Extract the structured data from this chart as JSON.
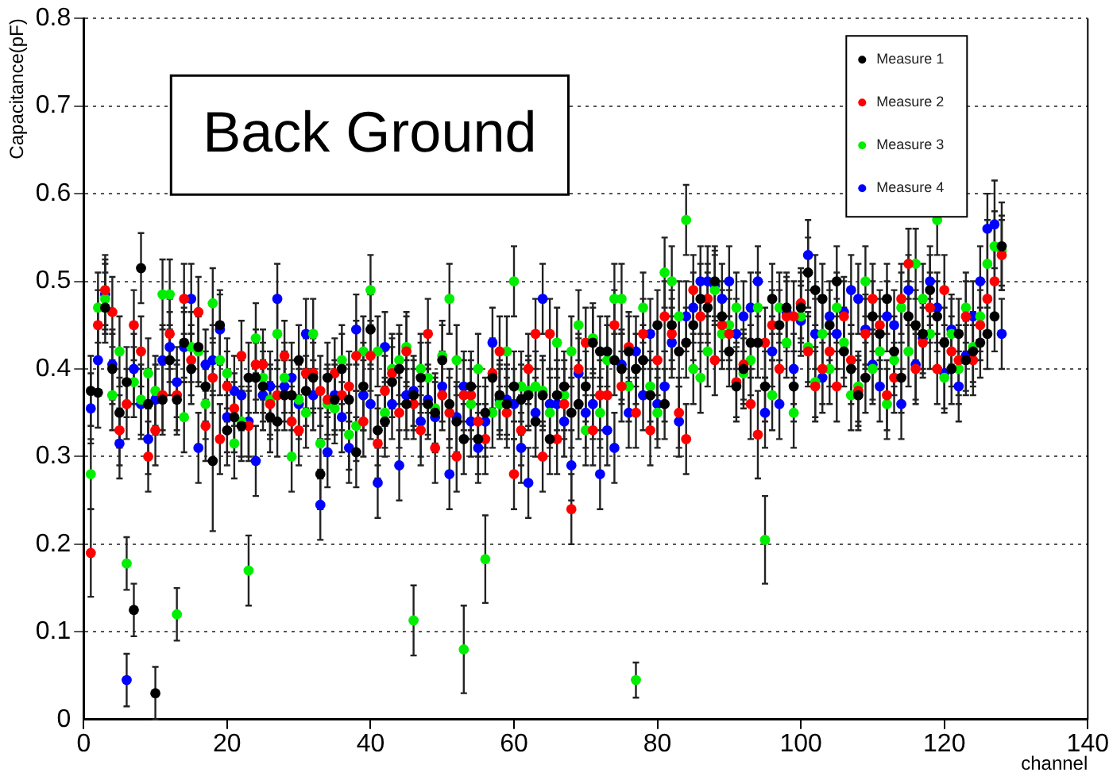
{
  "chart_data": {
    "type": "scatter",
    "xlabel": "channel",
    "ylabel": "Capacitance(pF)",
    "annotations": [
      "Back Ground"
    ],
    "xlim": [
      0,
      140
    ],
    "xticks": [
      0,
      20,
      40,
      60,
      80,
      100,
      120,
      140
    ],
    "ylim": [
      0,
      0.8
    ],
    "yticks": [
      0,
      0.1,
      0.2,
      0.3,
      0.4,
      0.5,
      0.6,
      0.7,
      0.8
    ],
    "grid": "y",
    "legend": "top right",
    "marker": "circle",
    "x": [
      1,
      2,
      3,
      4,
      5,
      6,
      7,
      8,
      9,
      10,
      11,
      12,
      13,
      14,
      15,
      16,
      17,
      18,
      19,
      20,
      21,
      22,
      23,
      24,
      25,
      26,
      27,
      28,
      29,
      30,
      31,
      32,
      33,
      34,
      35,
      36,
      37,
      38,
      39,
      40,
      41,
      42,
      43,
      44,
      45,
      46,
      47,
      48,
      49,
      50,
      51,
      52,
      53,
      54,
      55,
      56,
      57,
      58,
      59,
      60,
      61,
      62,
      63,
      64,
      65,
      66,
      67,
      68,
      69,
      70,
      71,
      72,
      73,
      74,
      75,
      76,
      77,
      78,
      79,
      80,
      81,
      82,
      83,
      84,
      85,
      86,
      87,
      88,
      89,
      90,
      91,
      92,
      93,
      94,
      95,
      96,
      97,
      98,
      99,
      100,
      101,
      102,
      103,
      104,
      105,
      106,
      107,
      108,
      109,
      110,
      111,
      112,
      113,
      114,
      115,
      116,
      117,
      118,
      119,
      120,
      121,
      122,
      123,
      124,
      125,
      126,
      127,
      128
    ],
    "series": [
      {
        "name": "Measure 1",
        "color": "#000000",
        "values": [
          0.375,
          0.373,
          0.47,
          0.4,
          0.35,
          0.385,
          0.125,
          0.515,
          0.36,
          0.03,
          0.365,
          0.41,
          0.365,
          0.43,
          0.4,
          0.425,
          0.38,
          0.295,
          0.45,
          0.33,
          0.345,
          0.335,
          0.39,
          0.39,
          0.38,
          0.345,
          0.34,
          0.37,
          0.37,
          0.41,
          0.375,
          0.39,
          0.28,
          0.39,
          0.365,
          0.4,
          0.365,
          0.305,
          0.38,
          0.445,
          0.33,
          0.34,
          0.385,
          0.4,
          0.36,
          0.37,
          0.39,
          0.36,
          0.35,
          0.41,
          0.36,
          0.34,
          0.32,
          0.38,
          0.32,
          0.35,
          0.39,
          0.37,
          0.36,
          0.38,
          0.365,
          0.37,
          0.34,
          0.37,
          0.32,
          0.37,
          0.38,
          0.35,
          0.36,
          0.38,
          0.43,
          0.42,
          0.42,
          0.41,
          0.4,
          0.42,
          0.4,
          0.41,
          0.37,
          0.45,
          0.36,
          0.45,
          0.42,
          0.43,
          0.45,
          0.48,
          0.47,
          0.5,
          0.46,
          0.42,
          0.38,
          0.4,
          0.43,
          0.43,
          0.38,
          0.48,
          0.45,
          0.47,
          0.38,
          0.47,
          0.51,
          0.49,
          0.48,
          0.45,
          0.5,
          0.42,
          0.4,
          0.37,
          0.39,
          0.46,
          0.44,
          0.48,
          0.42,
          0.39,
          0.46,
          0.45,
          0.44,
          0.49,
          0.46,
          0.43,
          0.4,
          0.44,
          0.41,
          0.42,
          0.43,
          0.44,
          0.46,
          0.54
        ],
        "errors": [
          0.04,
          0.04,
          0.04,
          0.04,
          0.04,
          0.04,
          0.03,
          0.04,
          0.04,
          0.03,
          0.04,
          0.04,
          0.04,
          0.04,
          0.04,
          0.04,
          0.04,
          0.08,
          0.04,
          0.04,
          0.04,
          0.04,
          0.04,
          0.04,
          0.04,
          0.04,
          0.04,
          0.04,
          0.04,
          0.04,
          0.04,
          0.04,
          0.04,
          0.04,
          0.04,
          0.04,
          0.04,
          0.04,
          0.05,
          0.04,
          0.04,
          0.04,
          0.04,
          0.04,
          0.04,
          0.04,
          0.04,
          0.04,
          0.04,
          0.04,
          0.04,
          0.04,
          0.04,
          0.04,
          0.04,
          0.04,
          0.04,
          0.04,
          0.04,
          0.04,
          0.04,
          0.04,
          0.04,
          0.04,
          0.04,
          0.04,
          0.04,
          0.04,
          0.04,
          0.04,
          0.04,
          0.04,
          0.04,
          0.04,
          0.04,
          0.04,
          0.04,
          0.04,
          0.04,
          0.04,
          0.04,
          0.04,
          0.04,
          0.04,
          0.04,
          0.04,
          0.04,
          0.04,
          0.04,
          0.04,
          0.04,
          0.04,
          0.04,
          0.04,
          0.04,
          0.04,
          0.04,
          0.04,
          0.04,
          0.04,
          0.04,
          0.04,
          0.04,
          0.04,
          0.04,
          0.04,
          0.04,
          0.04,
          0.04,
          0.04,
          0.04,
          0.04,
          0.04,
          0.04,
          0.04,
          0.04,
          0.04,
          0.04,
          0.04,
          0.04,
          0.04,
          0.04,
          0.04,
          0.04,
          0.04,
          0.04,
          0.04,
          0.05
        ]
      },
      {
        "name": "Measure 2",
        "color": "#ff0000",
        "values": [
          0.19,
          0.45,
          0.49,
          0.465,
          0.33,
          0.36,
          0.45,
          0.42,
          0.3,
          0.33,
          0.37,
          0.44,
          0.37,
          0.48,
          0.41,
          0.465,
          0.335,
          0.39,
          0.32,
          0.38,
          0.355,
          0.415,
          0.335,
          0.405,
          0.405,
          0.36,
          0.37,
          0.415,
          0.34,
          0.33,
          0.395,
          0.395,
          0.375,
          0.365,
          0.395,
          0.37,
          0.38,
          0.415,
          0.34,
          0.415,
          0.315,
          0.375,
          0.395,
          0.35,
          0.42,
          0.36,
          0.33,
          0.44,
          0.31,
          0.37,
          0.35,
          0.3,
          0.37,
          0.37,
          0.34,
          0.32,
          0.395,
          0.42,
          0.35,
          0.28,
          0.33,
          0.4,
          0.44,
          0.3,
          0.44,
          0.32,
          0.36,
          0.24,
          0.4,
          0.43,
          0.33,
          0.37,
          0.37,
          0.45,
          0.38,
          0.425,
          0.35,
          0.44,
          0.33,
          0.41,
          0.46,
          0.44,
          0.35,
          0.32,
          0.49,
          0.46,
          0.48,
          0.41,
          0.45,
          0.44,
          0.385,
          0.405,
          0.36,
          0.325,
          0.43,
          0.45,
          0.4,
          0.46,
          0.46,
          0.475,
          0.42,
          0.38,
          0.4,
          0.42,
          0.38,
          0.46,
          0.41,
          0.375,
          0.44,
          0.48,
          0.45,
          0.37,
          0.39,
          0.48,
          0.52,
          0.4,
          0.43,
          0.47,
          0.4,
          0.49,
          0.42,
          0.41,
          0.46,
          0.41,
          0.45,
          0.48,
          0.5,
          0.53
        ],
        "errors": [
          0.05,
          0.04,
          0.04,
          0.04,
          0.04,
          0.04,
          0.04,
          0.04,
          0.04,
          0.04,
          0.04,
          0.04,
          0.04,
          0.04,
          0.04,
          0.04,
          0.04,
          0.04,
          0.04,
          0.04,
          0.04,
          0.04,
          0.04,
          0.04,
          0.04,
          0.04,
          0.04,
          0.04,
          0.04,
          0.04,
          0.04,
          0.04,
          0.04,
          0.04,
          0.04,
          0.04,
          0.04,
          0.04,
          0.04,
          0.04,
          0.04,
          0.04,
          0.04,
          0.04,
          0.04,
          0.04,
          0.04,
          0.04,
          0.04,
          0.04,
          0.04,
          0.04,
          0.04,
          0.04,
          0.04,
          0.04,
          0.04,
          0.04,
          0.04,
          0.04,
          0.04,
          0.04,
          0.04,
          0.04,
          0.04,
          0.04,
          0.04,
          0.04,
          0.04,
          0.04,
          0.04,
          0.04,
          0.04,
          0.04,
          0.04,
          0.04,
          0.04,
          0.04,
          0.04,
          0.04,
          0.04,
          0.04,
          0.04,
          0.04,
          0.04,
          0.04,
          0.04,
          0.04,
          0.04,
          0.04,
          0.04,
          0.04,
          0.04,
          0.05,
          0.04,
          0.04,
          0.04,
          0.04,
          0.04,
          0.04,
          0.04,
          0.04,
          0.04,
          0.04,
          0.04,
          0.04,
          0.04,
          0.04,
          0.04,
          0.04,
          0.04,
          0.04,
          0.04,
          0.04,
          0.04,
          0.04,
          0.04,
          0.04,
          0.04,
          0.04,
          0.04,
          0.04,
          0.04,
          0.04,
          0.04,
          0.04,
          0.04,
          0.04
        ]
      },
      {
        "name": "Measure 3",
        "color": "#00ee00",
        "values": [
          0.28,
          0.47,
          0.48,
          0.37,
          0.42,
          0.178,
          0.385,
          0.365,
          0.395,
          0.375,
          0.485,
          0.485,
          0.12,
          0.345,
          0.425,
          0.42,
          0.36,
          0.475,
          0.41,
          0.395,
          0.315,
          0.34,
          0.17,
          0.435,
          0.39,
          0.365,
          0.44,
          0.39,
          0.3,
          0.365,
          0.35,
          0.44,
          0.315,
          0.36,
          0.355,
          0.41,
          0.325,
          0.335,
          0.42,
          0.49,
          0.42,
          0.35,
          0.4,
          0.41,
          0.425,
          0.113,
          0.4,
          0.39,
          0.355,
          0.415,
          0.48,
          0.41,
          0.08,
          0.36,
          0.4,
          0.183,
          0.35,
          0.36,
          0.42,
          0.5,
          0.38,
          0.375,
          0.38,
          0.375,
          0.35,
          0.43,
          0.37,
          0.42,
          0.45,
          0.33,
          0.435,
          0.35,
          0.41,
          0.48,
          0.48,
          0.38,
          0.045,
          0.47,
          0.38,
          0.35,
          0.51,
          0.5,
          0.46,
          0.57,
          0.4,
          0.39,
          0.42,
          0.49,
          0.44,
          0.45,
          0.47,
          0.395,
          0.41,
          0.47,
          0.205,
          0.37,
          0.47,
          0.43,
          0.35,
          0.46,
          0.425,
          0.385,
          0.44,
          0.4,
          0.47,
          0.43,
          0.37,
          0.38,
          0.5,
          0.4,
          0.42,
          0.36,
          0.41,
          0.47,
          0.42,
          0.52,
          0.48,
          0.44,
          0.57,
          0.39,
          0.44,
          0.4,
          0.47,
          0.425,
          0.46,
          0.52,
          0.54,
          0.535
        ],
        "errors": [
          0.04,
          0.04,
          0.04,
          0.04,
          0.04,
          0.03,
          0.04,
          0.04,
          0.04,
          0.04,
          0.04,
          0.04,
          0.03,
          0.04,
          0.04,
          0.04,
          0.04,
          0.04,
          0.04,
          0.04,
          0.04,
          0.04,
          0.04,
          0.04,
          0.04,
          0.04,
          0.04,
          0.04,
          0.04,
          0.04,
          0.04,
          0.04,
          0.04,
          0.04,
          0.04,
          0.04,
          0.04,
          0.04,
          0.04,
          0.04,
          0.04,
          0.04,
          0.04,
          0.04,
          0.04,
          0.04,
          0.04,
          0.04,
          0.04,
          0.04,
          0.04,
          0.04,
          0.05,
          0.04,
          0.04,
          0.05,
          0.04,
          0.04,
          0.04,
          0.04,
          0.04,
          0.04,
          0.04,
          0.04,
          0.04,
          0.04,
          0.04,
          0.04,
          0.04,
          0.04,
          0.04,
          0.04,
          0.04,
          0.04,
          0.04,
          0.04,
          0.02,
          0.04,
          0.04,
          0.04,
          0.04,
          0.04,
          0.04,
          0.04,
          0.04,
          0.04,
          0.04,
          0.04,
          0.04,
          0.04,
          0.04,
          0.04,
          0.04,
          0.04,
          0.05,
          0.04,
          0.04,
          0.04,
          0.04,
          0.04,
          0.04,
          0.04,
          0.04,
          0.04,
          0.04,
          0.04,
          0.04,
          0.04,
          0.04,
          0.04,
          0.04,
          0.04,
          0.04,
          0.04,
          0.04,
          0.04,
          0.04,
          0.04,
          0.04,
          0.04,
          0.04,
          0.04,
          0.04,
          0.04,
          0.04,
          0.05,
          0.04,
          0.04
        ]
      },
      {
        "name": "Measure 4",
        "color": "#0000ff",
        "values": [
          0.355,
          0.41,
          0.485,
          0.405,
          0.315,
          0.045,
          0.4,
          0.36,
          0.32,
          0.365,
          0.41,
          0.425,
          0.385,
          0.425,
          0.48,
          0.31,
          0.405,
          0.41,
          0.445,
          0.345,
          0.375,
          0.37,
          0.34,
          0.295,
          0.37,
          0.38,
          0.48,
          0.38,
          0.39,
          0.36,
          0.44,
          0.37,
          0.245,
          0.305,
          0.37,
          0.345,
          0.31,
          0.445,
          0.37,
          0.36,
          0.27,
          0.425,
          0.36,
          0.29,
          0.37,
          0.375,
          0.34,
          0.365,
          0.345,
          0.38,
          0.28,
          0.345,
          0.38,
          0.34,
          0.31,
          0.34,
          0.43,
          0.365,
          0.365,
          0.36,
          0.31,
          0.27,
          0.35,
          0.48,
          0.36,
          0.36,
          0.34,
          0.29,
          0.395,
          0.35,
          0.36,
          0.28,
          0.33,
          0.31,
          0.405,
          0.35,
          0.42,
          0.37,
          0.44,
          0.36,
          0.38,
          0.43,
          0.34,
          0.46,
          0.47,
          0.5,
          0.5,
          0.495,
          0.48,
          0.5,
          0.44,
          0.46,
          0.47,
          0.5,
          0.35,
          0.42,
          0.36,
          0.465,
          0.4,
          0.455,
          0.53,
          0.44,
          0.39,
          0.46,
          0.44,
          0.465,
          0.49,
          0.48,
          0.445,
          0.405,
          0.38,
          0.46,
          0.45,
          0.36,
          0.49,
          0.405,
          0.435,
          0.5,
          0.47,
          0.395,
          0.445,
          0.38,
          0.415,
          0.46,
          0.5,
          0.56,
          0.565,
          0.44
        ],
        "errors": [
          0.04,
          0.04,
          0.04,
          0.04,
          0.04,
          0.03,
          0.04,
          0.04,
          0.04,
          0.04,
          0.04,
          0.04,
          0.04,
          0.04,
          0.04,
          0.04,
          0.04,
          0.04,
          0.04,
          0.04,
          0.04,
          0.04,
          0.04,
          0.04,
          0.04,
          0.04,
          0.04,
          0.04,
          0.04,
          0.04,
          0.04,
          0.04,
          0.04,
          0.04,
          0.04,
          0.04,
          0.04,
          0.04,
          0.04,
          0.04,
          0.04,
          0.04,
          0.04,
          0.04,
          0.04,
          0.04,
          0.04,
          0.04,
          0.04,
          0.04,
          0.04,
          0.04,
          0.04,
          0.04,
          0.04,
          0.04,
          0.04,
          0.04,
          0.04,
          0.04,
          0.04,
          0.04,
          0.04,
          0.04,
          0.04,
          0.04,
          0.04,
          0.04,
          0.04,
          0.04,
          0.04,
          0.04,
          0.04,
          0.04,
          0.04,
          0.04,
          0.04,
          0.04,
          0.04,
          0.04,
          0.04,
          0.04,
          0.04,
          0.04,
          0.04,
          0.04,
          0.04,
          0.04,
          0.04,
          0.04,
          0.04,
          0.04,
          0.04,
          0.04,
          0.04,
          0.04,
          0.04,
          0.04,
          0.04,
          0.04,
          0.04,
          0.04,
          0.04,
          0.04,
          0.04,
          0.04,
          0.04,
          0.04,
          0.04,
          0.04,
          0.04,
          0.04,
          0.04,
          0.04,
          0.04,
          0.04,
          0.04,
          0.04,
          0.04,
          0.04,
          0.04,
          0.04,
          0.04,
          0.04,
          0.04,
          0.04,
          0.05,
          0.04
        ]
      }
    ]
  }
}
